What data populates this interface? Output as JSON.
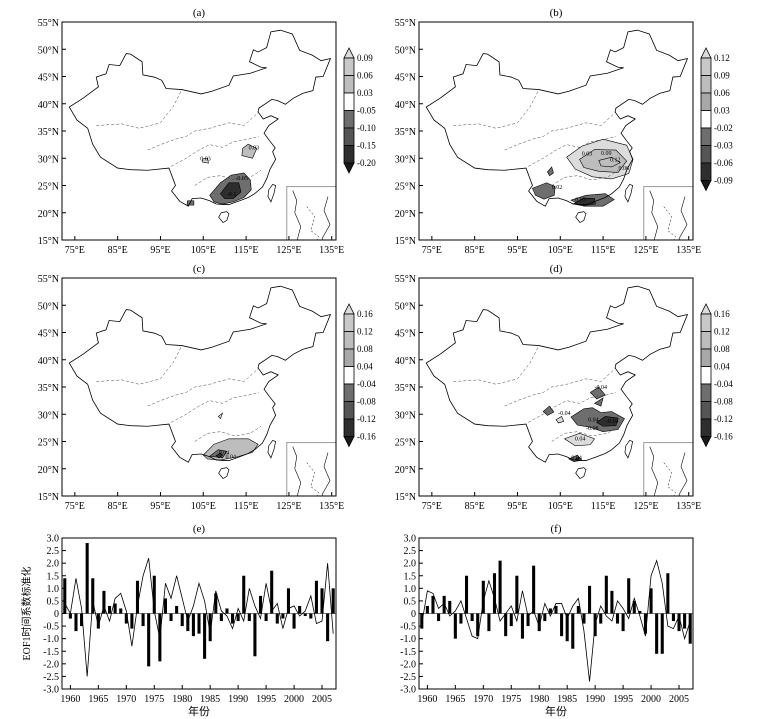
{
  "colors": {
    "shade_dark": "#2e2e2e",
    "shade_mid": "#6e6e6e",
    "shade_light": "#bdbdbd",
    "shade_lighter": "#dcdcdc",
    "outline": "#000000",
    "inset_border": "#9a9a9a"
  },
  "maps": [
    {
      "label": "(a)",
      "lat_ticks": [
        "55°N",
        "50°N",
        "45°N",
        "40°N",
        "35°N",
        "30°N",
        "25°N",
        "20°N",
        "15°N"
      ],
      "lon_ticks": [
        "75°E",
        "85°E",
        "95°E",
        "105°E",
        "115°E",
        "125°E",
        "135°E"
      ],
      "colorbar": [
        "0.09",
        "0.06",
        "0.03",
        "-0.05",
        "-0.10",
        "-0.15",
        "-0.20"
      ],
      "contour_labels": [
        "0.03",
        "0.03",
        "-0.05",
        "-0.1"
      ]
    },
    {
      "label": "(b)",
      "lat_ticks": [
        "55°N",
        "50°N",
        "45°N",
        "40°N",
        "35°N",
        "30°N",
        "25°N",
        "20°N",
        "15°N"
      ],
      "lon_ticks": [
        "75°E",
        "85°E",
        "95°E",
        "105°E",
        "115°E",
        "125°E",
        "135°E"
      ],
      "colorbar": [
        "0.12",
        "0.09",
        "0.06",
        "0.03",
        "-0.02",
        "-0.03",
        "-0.06",
        "-0.09"
      ],
      "contour_labels": [
        "0.03",
        "0.09",
        "0.12",
        "0.06",
        "0.02",
        "0.03"
      ]
    },
    {
      "label": "(c)",
      "lat_ticks": [
        "55°N",
        "50°N",
        "45°N",
        "40°N",
        "35°N",
        "30°N",
        "25°N",
        "20°N",
        "15°N"
      ],
      "lon_ticks": [
        "75°E",
        "85°E",
        "95°E",
        "105°E",
        "115°E",
        "125°E",
        "135°E"
      ],
      "colorbar": [
        "0.16",
        "0.12",
        "0.08",
        "0.04",
        "-0.04",
        "-0.08",
        "-0.12",
        "-0.16"
      ],
      "contour_labels": [
        "0.04",
        "0.04"
      ]
    },
    {
      "label": "(d)",
      "lat_ticks": [
        "55°N",
        "50°N",
        "45°N",
        "40°N",
        "35°N",
        "30°N",
        "25°N",
        "20°N",
        "15°N"
      ],
      "lon_ticks": [
        "75°E",
        "85°E",
        "95°E",
        "105°E",
        "115°E",
        "125°E",
        "135°E"
      ],
      "colorbar": [
        "0.16",
        "0.12",
        "0.08",
        "0.04",
        "-0.04",
        "-0.08",
        "-0.12",
        "-0.16"
      ],
      "contour_labels": [
        "-0.04",
        "-0.04",
        "-0.04",
        "0.04",
        "-0.08",
        "0.04",
        "0.04"
      ]
    }
  ],
  "chart_data": [
    {
      "type": "bar",
      "label": "(e)",
      "xlabel": "年份",
      "ylabel": "EOF1时间系数标准化",
      "ylim": [
        -3.0,
        3.0
      ],
      "yticks": [
        "3.0",
        "2.5",
        "2.0",
        "1.5",
        "1.0",
        "0.5",
        "0",
        "-0.5",
        "-1.0",
        "-1.5",
        "-2.0",
        "-2.5",
        "-3.0"
      ],
      "xticks": [
        "1960",
        "1965",
        "1970",
        "1975",
        "1980",
        "1985",
        "1990",
        "1995",
        "2000",
        "2005"
      ],
      "x": [
        1959,
        1960,
        1961,
        1962,
        1963,
        1964,
        1965,
        1966,
        1967,
        1968,
        1969,
        1970,
        1971,
        1972,
        1973,
        1974,
        1975,
        1976,
        1977,
        1978,
        1979,
        1980,
        1981,
        1982,
        1983,
        1984,
        1985,
        1986,
        1987,
        1988,
        1989,
        1990,
        1991,
        1992,
        1993,
        1994,
        1995,
        1996,
        1997,
        1998,
        1999,
        2000,
        2001,
        2002,
        2003,
        2004,
        2005,
        2006,
        2007
      ],
      "series": [
        {
          "values": [
            1.4,
            -0.2,
            -0.7,
            -0.5,
            2.8,
            1.4,
            -0.6,
            0.9,
            0.3,
            0.4,
            0.2,
            -0.4,
            -0.6,
            1.3,
            -0.5,
            -2.1,
            1.5,
            -1.9,
            0.6,
            -0.3,
            0.3,
            -0.5,
            -0.7,
            -0.9,
            -0.8,
            -1.8,
            -1.1,
            0.8,
            -0.3,
            0.2,
            -0.4,
            -0.3,
            1.5,
            -0.3,
            -1.7,
            0.7,
            -0.3,
            1.7,
            -0.4,
            -0.2,
            1.0,
            -0.6,
            0.3,
            -0.1,
            -0.2,
            1.3,
            1.0,
            -1.1,
            1.0
          ]
        },
        {
          "values": [
            0.4,
            0.0,
            1.4,
            0.2,
            -2.5,
            0.5,
            -0.5,
            0.3,
            -0.3,
            0.6,
            0.8,
            0.1,
            -1.3,
            0.3,
            1.5,
            2.2,
            0.1,
            -1.0,
            1.2,
            0.6,
            1.5,
            0.6,
            -0.3,
            0.3,
            1.2,
            0.5,
            -0.8,
            0.9,
            0.1,
            -0.1,
            -0.6,
            0.2,
            -0.3,
            1.0,
            0.3,
            -0.2,
            1.2,
            0.1,
            0.4,
            -0.6,
            0.2,
            0.3,
            -0.1,
            0.1,
            0.7,
            -0.4,
            -0.3,
            2.0,
            -0.8
          ]
        }
      ]
    },
    {
      "type": "bar",
      "label": "(f)",
      "xlabel": "年份",
      "ylabel": "",
      "ylim": [
        -3.0,
        3.0
      ],
      "yticks": [
        "3.0",
        "2.5",
        "2.0",
        "1.5",
        "1.0",
        "0.5",
        "0",
        "-0.5",
        "-1.0",
        "-1.5",
        "-2.0",
        "-2.5",
        "-3.0"
      ],
      "xticks": [
        "1960",
        "1965",
        "1970",
        "1975",
        "1980",
        "1985",
        "1990",
        "1995",
        "2000",
        "2005"
      ],
      "x": [
        1959,
        1960,
        1961,
        1962,
        1963,
        1964,
        1965,
        1966,
        1967,
        1968,
        1969,
        1970,
        1971,
        1972,
        1973,
        1974,
        1975,
        1976,
        1977,
        1978,
        1979,
        1980,
        1981,
        1982,
        1983,
        1984,
        1985,
        1986,
        1987,
        1988,
        1989,
        1990,
        1991,
        1992,
        1993,
        1994,
        1995,
        1996,
        1997,
        1998,
        1999,
        2000,
        2001,
        2002,
        2003,
        2004,
        2005,
        2006,
        2007
      ],
      "series": [
        {
          "values": [
            -0.6,
            0.3,
            0.7,
            -0.3,
            0.7,
            0.5,
            -1.0,
            -0.4,
            1.5,
            -0.3,
            -0.9,
            1.3,
            -0.7,
            1.6,
            2.1,
            -0.9,
            -0.5,
            1.5,
            -1.0,
            -0.5,
            1.9,
            -0.7,
            -0.3,
            0.2,
            0.3,
            -0.9,
            -1.1,
            -1.4,
            0.3,
            -0.4,
            1.1,
            -0.9,
            -0.4,
            1.5,
            0.9,
            -0.4,
            -0.7,
            1.4,
            0.5,
            0.1,
            -0.8,
            1.0,
            -1.6,
            -1.6,
            1.6,
            -0.3,
            -0.7,
            -0.6,
            -1.2
          ]
        },
        {
          "values": [
            -0.4,
            0.9,
            0.8,
            0.2,
            0.4,
            -0.1,
            0.1,
            0.5,
            -0.2,
            -0.9,
            -1.0,
            0.5,
            1.3,
            0.6,
            -0.3,
            0.0,
            0.3,
            -0.3,
            0.9,
            -0.1,
            0.1,
            -0.5,
            0.4,
            -0.1,
            0.4,
            0.4,
            -0.2,
            0.3,
            0.6,
            -0.7,
            -2.7,
            -0.4,
            0.3,
            -0.1,
            -0.3,
            0.5,
            0.2,
            -0.2,
            0.6,
            -0.1,
            -0.9,
            1.5,
            2.1,
            1.2,
            -0.5,
            -0.6,
            -0.1,
            -1.0,
            -0.3
          ]
        }
      ]
    }
  ]
}
